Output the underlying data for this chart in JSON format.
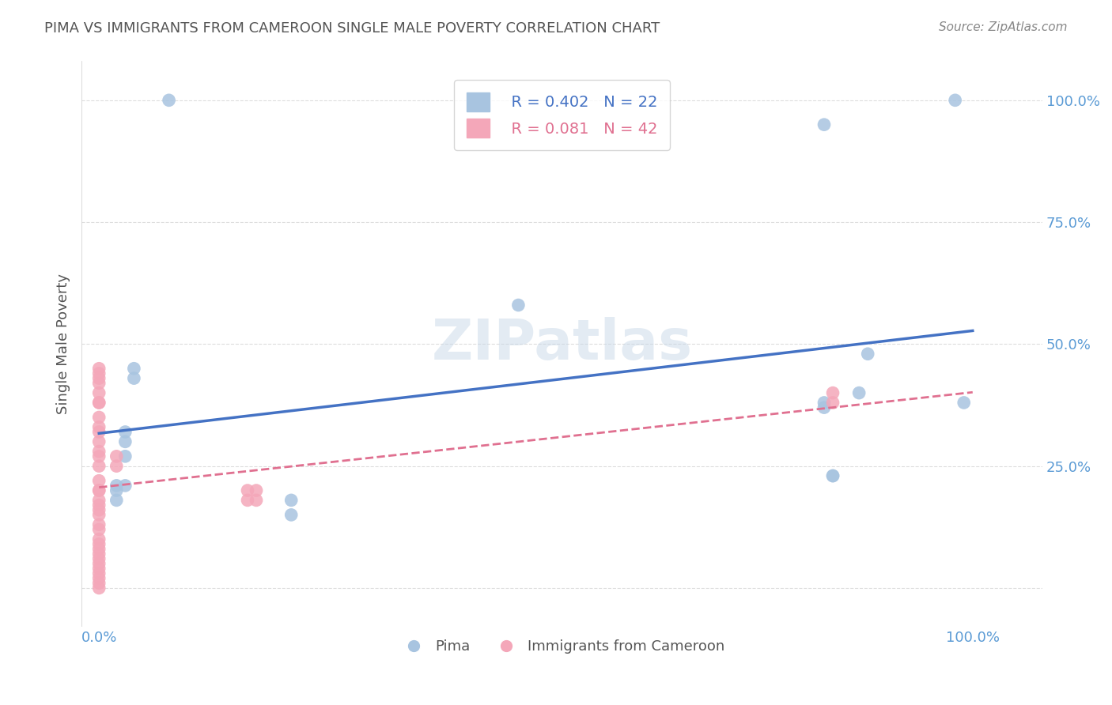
{
  "title": "PIMA VS IMMIGRANTS FROM CAMEROON SINGLE MALE POVERTY CORRELATION CHART",
  "source": "Source: ZipAtlas.com",
  "xlabel_bottom": "",
  "ylabel": "Single Male Poverty",
  "x_ticks": [
    0.0,
    0.25,
    0.5,
    0.75,
    1.0
  ],
  "x_tick_labels": [
    "0.0%",
    "",
    "",
    "",
    "100.0%"
  ],
  "y_ticks": [
    0.0,
    0.25,
    0.5,
    0.75,
    1.0
  ],
  "y_tick_labels": [
    "",
    "25.0%",
    "50.0%",
    "75.0%",
    "100.0%"
  ],
  "xlim": [
    -0.02,
    1.08
  ],
  "ylim": [
    -0.08,
    1.08
  ],
  "pima_color": "#a8c4e0",
  "cameroon_color": "#f4a7b9",
  "pima_line_color": "#4472c4",
  "cameroon_line_color": "#e07090",
  "legend_R_pima": "R = 0.402",
  "legend_N_pima": "N = 22",
  "legend_R_cam": "R = 0.081",
  "legend_N_cam": "N = 42",
  "watermark": "ZIPatlas",
  "pima_x": [
    0.08,
    0.98,
    0.83,
    0.04,
    0.04,
    0.03,
    0.03,
    0.03,
    0.03,
    0.02,
    0.02,
    0.02,
    0.48,
    0.83,
    0.88,
    0.87,
    0.84,
    0.84,
    0.22,
    0.22,
    0.83,
    0.99
  ],
  "pima_y": [
    1.0,
    1.0,
    0.95,
    0.45,
    0.43,
    0.32,
    0.3,
    0.27,
    0.21,
    0.21,
    0.2,
    0.18,
    0.58,
    0.37,
    0.48,
    0.4,
    0.23,
    0.23,
    0.18,
    0.15,
    0.38,
    0.38
  ],
  "cameroon_x": [
    0.0,
    0.0,
    0.0,
    0.0,
    0.0,
    0.0,
    0.0,
    0.0,
    0.0,
    0.0,
    0.0,
    0.0,
    0.0,
    0.0,
    0.0,
    0.0,
    0.0,
    0.0,
    0.0,
    0.0,
    0.0,
    0.0,
    0.0,
    0.0,
    0.0,
    0.0,
    0.0,
    0.0,
    0.0,
    0.0,
    0.0,
    0.0,
    0.0,
    0.0,
    0.17,
    0.17,
    0.18,
    0.18,
    0.84,
    0.84,
    0.02,
    0.02
  ],
  "cameroon_y": [
    0.45,
    0.42,
    0.38,
    0.33,
    0.3,
    0.27,
    0.25,
    0.22,
    0.2,
    0.17,
    0.16,
    0.15,
    0.13,
    0.12,
    0.1,
    0.09,
    0.08,
    0.07,
    0.06,
    0.05,
    0.04,
    0.03,
    0.02,
    0.01,
    0.0,
    0.44,
    0.43,
    0.4,
    0.38,
    0.35,
    0.32,
    0.28,
    0.2,
    0.18,
    0.2,
    0.18,
    0.2,
    0.18,
    0.4,
    0.38,
    0.27,
    0.25
  ],
  "background_color": "#ffffff",
  "grid_color": "#dddddd",
  "tick_color": "#5b9bd5",
  "title_color": "#555555",
  "marker_size": 12
}
